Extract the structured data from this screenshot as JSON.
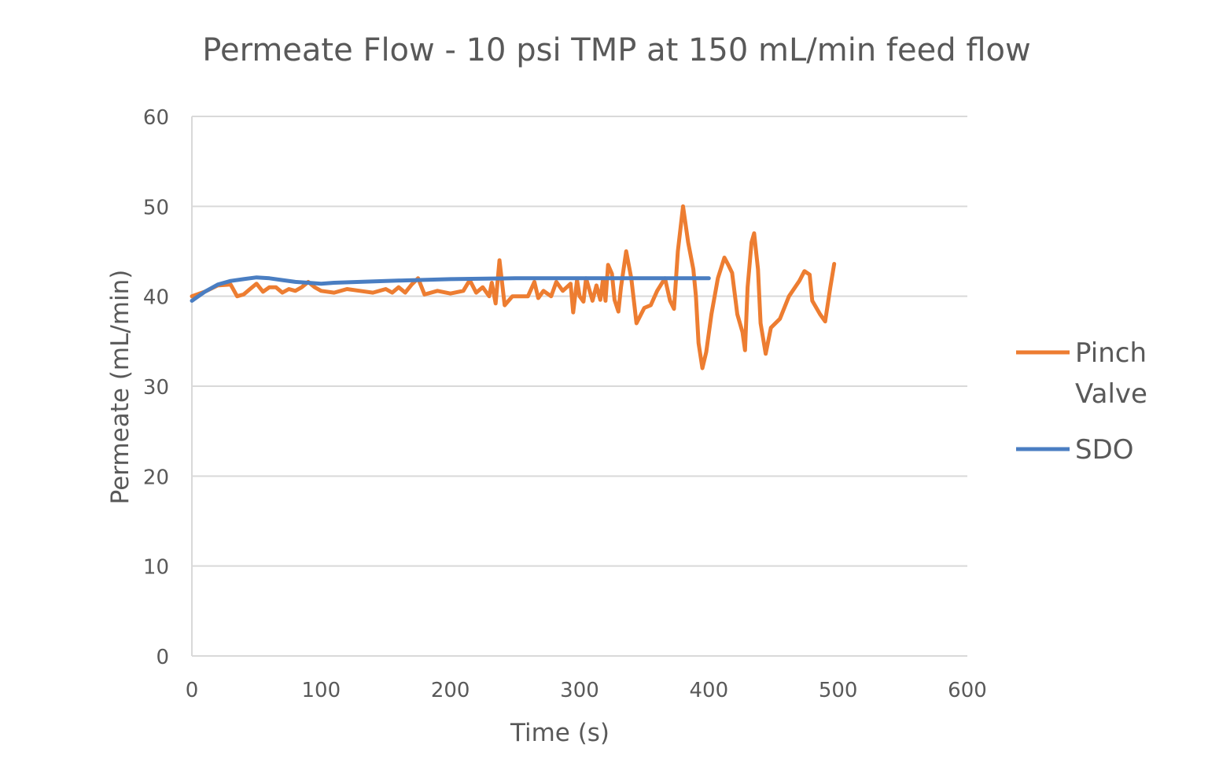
{
  "chart_data": {
    "type": "line",
    "title": "Permeate Flow - 10 psi TMP at 150 mL/min feed flow",
    "xlabel": "Time (s)",
    "ylabel": "Permeate (mL/min)",
    "xlim": [
      0,
      600
    ],
    "ylim": [
      0,
      60
    ],
    "xticks": [
      0,
      100,
      200,
      300,
      400,
      500,
      600
    ],
    "yticks": [
      0,
      10,
      20,
      30,
      40,
      50,
      60
    ],
    "grid": "horizontal",
    "legend_position": "right",
    "series": [
      {
        "name": "Pinch Valve",
        "color": "#ED7D31",
        "x": [
          0,
          10,
          20,
          30,
          35,
          40,
          45,
          50,
          55,
          60,
          65,
          70,
          75,
          80,
          85,
          90,
          95,
          100,
          110,
          120,
          130,
          140,
          150,
          155,
          160,
          165,
          170,
          175,
          180,
          190,
          200,
          210,
          215,
          220,
          225,
          230,
          232,
          235,
          238,
          242,
          248,
          260,
          265,
          268,
          272,
          278,
          282,
          287,
          293,
          295,
          298,
          300,
          303,
          305,
          310,
          313,
          316,
          318,
          320,
          322,
          325,
          327,
          330,
          332,
          336,
          340,
          344,
          350,
          355,
          360,
          366,
          370,
          373,
          376,
          380,
          384,
          388,
          390,
          392,
          395,
          398,
          402,
          407,
          412,
          415,
          418,
          422,
          426,
          428,
          430,
          433,
          435,
          438,
          440,
          444,
          448,
          455,
          462,
          470,
          474,
          478,
          480,
          486,
          490,
          494,
          497
        ],
        "y": [
          40.0,
          40.5,
          41.2,
          41.3,
          40.0,
          40.2,
          40.8,
          41.4,
          40.5,
          41.0,
          41.0,
          40.4,
          40.8,
          40.6,
          41.0,
          41.6,
          41.0,
          40.6,
          40.4,
          40.8,
          40.6,
          40.4,
          40.8,
          40.4,
          41.0,
          40.4,
          41.3,
          42.0,
          40.2,
          40.6,
          40.3,
          40.6,
          41.8,
          40.4,
          41.0,
          40.0,
          41.5,
          39.2,
          44.0,
          39.0,
          40.0,
          40.0,
          41.6,
          39.8,
          40.6,
          40.0,
          41.6,
          40.6,
          41.4,
          38.2,
          41.8,
          40.0,
          39.4,
          42.0,
          39.5,
          41.2,
          39.6,
          41.8,
          39.5,
          43.5,
          42.5,
          39.6,
          38.3,
          41.0,
          45.0,
          42.0,
          37.0,
          38.7,
          39.0,
          40.6,
          42.0,
          39.5,
          38.6,
          45.0,
          50.0,
          46.0,
          43.0,
          40.0,
          34.8,
          32.0,
          33.8,
          38.0,
          42.0,
          44.3,
          43.5,
          42.6,
          38.0,
          36.0,
          34.0,
          41.0,
          46.0,
          47.0,
          43.0,
          37.0,
          33.6,
          36.5,
          37.5,
          40.0,
          41.7,
          42.8,
          42.4,
          39.5,
          38.0,
          37.2,
          41.0,
          43.6
        ]
      },
      {
        "name": "SDO",
        "color": "#4A7EC2",
        "x": [
          0,
          10,
          20,
          30,
          40,
          50,
          60,
          70,
          80,
          90,
          100,
          110,
          130,
          150,
          200,
          250,
          300,
          350,
          400
        ],
        "y": [
          39.5,
          40.5,
          41.3,
          41.7,
          41.9,
          42.1,
          42.0,
          41.8,
          41.6,
          41.5,
          41.4,
          41.5,
          41.6,
          41.7,
          41.9,
          42.0,
          42.0,
          42.0,
          42.0
        ]
      }
    ]
  }
}
